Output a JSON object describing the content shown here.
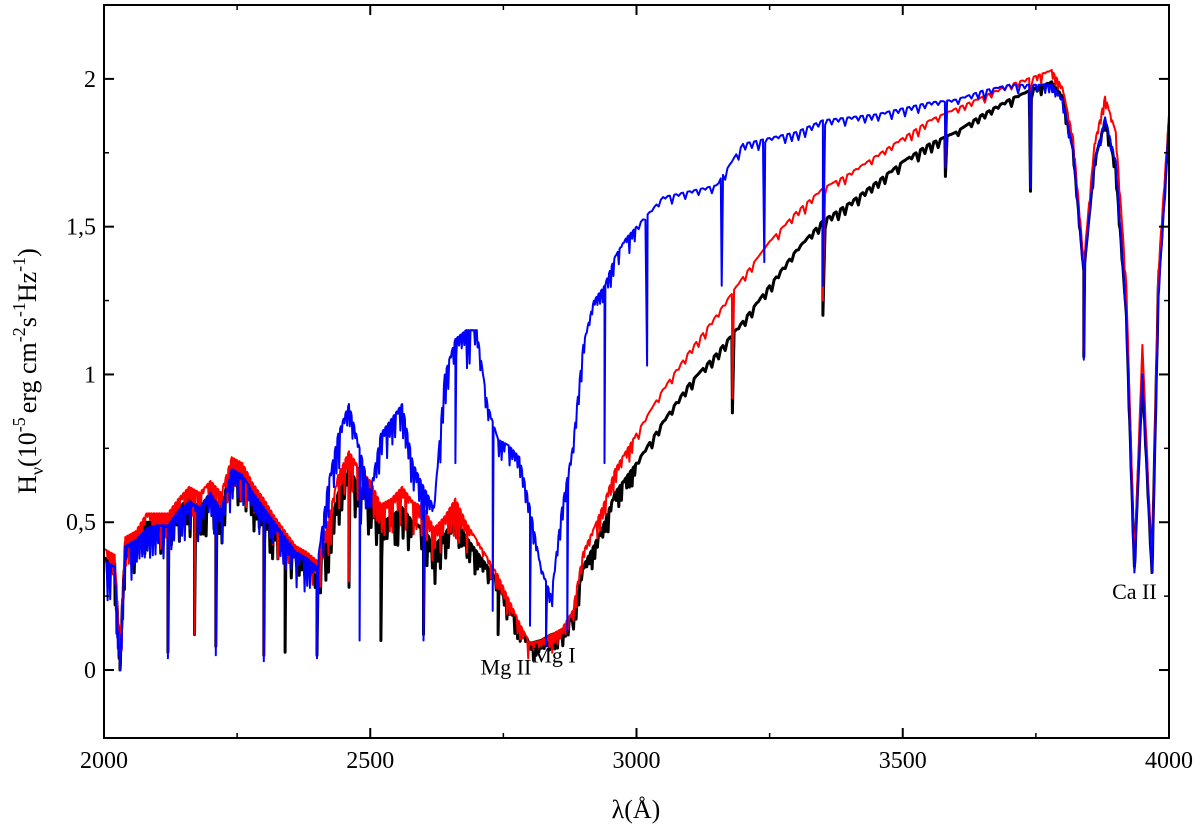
{
  "chart_data": {
    "type": "line",
    "title": "",
    "xlabel": "λ(Å)",
    "ylabel": {
      "main": "H",
      "sub": "ν",
      "unit": "(10",
      "exp": "-5",
      "rest": "erg cm",
      "exp2": "-2",
      "s": "s",
      "exp3": "-1",
      "hz": "Hz",
      "exp4": "-1",
      "close": ")"
    },
    "xlim": [
      2000,
      4000
    ],
    "ylim": [
      -0.23,
      2.25
    ],
    "x_ticks": [
      {
        "value": 2000,
        "label": "2000"
      },
      {
        "value": 2500,
        "label": "2500"
      },
      {
        "value": 3000,
        "label": "3000"
      },
      {
        "value": 3500,
        "label": "3500"
      },
      {
        "value": 4000,
        "label": "4000"
      }
    ],
    "y_ticks": [
      {
        "value": 0,
        "label": "0"
      },
      {
        "value": 0.5,
        "label": "0,5"
      },
      {
        "value": 1,
        "label": "1"
      },
      {
        "value": 1.5,
        "label": "1,5"
      },
      {
        "value": 2,
        "label": "2"
      }
    ],
    "grid": false,
    "series": [
      {
        "color": "#000000",
        "stroke": 3,
        "x": [
          2000,
          2020,
          2030,
          2040,
          2060,
          2080,
          2100,
          2120,
          2140,
          2160,
          2180,
          2200,
          2220,
          2240,
          2260,
          2280,
          2300,
          2320,
          2340,
          2360,
          2380,
          2400,
          2420,
          2440,
          2460,
          2480,
          2500,
          2520,
          2540,
          2560,
          2580,
          2600,
          2620,
          2640,
          2660,
          2680,
          2700,
          2720,
          2740,
          2760,
          2780,
          2800,
          2820,
          2840,
          2860,
          2880,
          2900,
          2920,
          2940,
          2960,
          2980,
          3000,
          3050,
          3100,
          3150,
          3200,
          3250,
          3300,
          3350,
          3400,
          3450,
          3500,
          3550,
          3600,
          3650,
          3700,
          3750,
          3780,
          3800,
          3820,
          3840,
          3860,
          3880,
          3900,
          3920,
          3935,
          3950,
          3968,
          3980,
          4000
        ],
        "y": [
          0.38,
          0.36,
          0.05,
          0.43,
          0.44,
          0.5,
          0.5,
          0.5,
          0.55,
          0.58,
          0.55,
          0.6,
          0.55,
          0.69,
          0.68,
          0.6,
          0.55,
          0.5,
          0.45,
          0.4,
          0.38,
          0.35,
          0.45,
          0.6,
          0.68,
          0.62,
          0.58,
          0.5,
          0.52,
          0.55,
          0.5,
          0.48,
          0.42,
          0.46,
          0.52,
          0.45,
          0.4,
          0.35,
          0.3,
          0.22,
          0.15,
          0.09,
          0.1,
          0.12,
          0.13,
          0.18,
          0.35,
          0.42,
          0.5,
          0.6,
          0.65,
          0.7,
          0.84,
          0.97,
          1.07,
          1.18,
          1.3,
          1.42,
          1.52,
          1.58,
          1.65,
          1.72,
          1.78,
          1.82,
          1.88,
          1.93,
          1.97,
          1.99,
          1.94,
          1.76,
          1.35,
          1.72,
          1.86,
          1.7,
          1.2,
          0.35,
          1.0,
          0.33,
          1.3,
          1.85
        ],
        "absorption": [
          [
            2030,
            0.0
          ],
          [
            2120,
            0.06
          ],
          [
            2170,
            0.12
          ],
          [
            2210,
            0.08
          ],
          [
            2300,
            0.05
          ],
          [
            2340,
            0.06
          ],
          [
            2400,
            0.05
          ],
          [
            2460,
            0.28
          ],
          [
            2520,
            0.1
          ],
          [
            2600,
            0.12
          ],
          [
            2740,
            0.12
          ],
          [
            2880,
            0.16
          ],
          [
            3180,
            0.87
          ],
          [
            3350,
            1.2
          ],
          [
            3580,
            1.67
          ],
          [
            3740,
            1.62
          ],
          [
            3840,
            1.06
          ]
        ]
      },
      {
        "color": "#ff0000",
        "stroke": 2,
        "x": [
          2000,
          2020,
          2030,
          2040,
          2060,
          2080,
          2100,
          2120,
          2140,
          2160,
          2180,
          2200,
          2220,
          2240,
          2260,
          2280,
          2300,
          2320,
          2340,
          2360,
          2380,
          2400,
          2420,
          2440,
          2460,
          2480,
          2500,
          2520,
          2540,
          2560,
          2580,
          2600,
          2620,
          2640,
          2660,
          2680,
          2700,
          2720,
          2740,
          2760,
          2780,
          2800,
          2820,
          2840,
          2860,
          2880,
          2900,
          2920,
          2940,
          2960,
          2980,
          3000,
          3050,
          3100,
          3150,
          3200,
          3250,
          3300,
          3350,
          3400,
          3450,
          3500,
          3550,
          3600,
          3650,
          3700,
          3750,
          3780,
          3800,
          3820,
          3840,
          3860,
          3880,
          3900,
          3920,
          3935,
          3950,
          3968,
          3980,
          4000
        ],
        "y": [
          0.41,
          0.39,
          0.06,
          0.45,
          0.47,
          0.53,
          0.53,
          0.53,
          0.58,
          0.62,
          0.6,
          0.64,
          0.6,
          0.72,
          0.7,
          0.63,
          0.58,
          0.52,
          0.47,
          0.42,
          0.4,
          0.37,
          0.5,
          0.66,
          0.74,
          0.68,
          0.64,
          0.56,
          0.58,
          0.62,
          0.57,
          0.55,
          0.48,
          0.52,
          0.58,
          0.5,
          0.44,
          0.38,
          0.32,
          0.24,
          0.16,
          0.09,
          0.1,
          0.12,
          0.14,
          0.2,
          0.4,
          0.48,
          0.57,
          0.68,
          0.74,
          0.8,
          0.95,
          1.08,
          1.2,
          1.33,
          1.45,
          1.55,
          1.63,
          1.68,
          1.74,
          1.8,
          1.86,
          1.9,
          1.94,
          1.98,
          2.01,
          2.03,
          1.97,
          1.8,
          1.38,
          1.78,
          1.94,
          1.82,
          1.3,
          0.36,
          1.1,
          0.34,
          1.35,
          1.88
        ],
        "absorption": [
          [
            2030,
            0.0
          ],
          [
            2120,
            0.06
          ],
          [
            2170,
            0.12
          ],
          [
            2210,
            0.08
          ],
          [
            2300,
            0.05
          ],
          [
            2400,
            0.05
          ],
          [
            2460,
            0.3
          ],
          [
            2600,
            0.13
          ],
          [
            2880,
            0.18
          ],
          [
            3180,
            0.92
          ],
          [
            3350,
            1.25
          ],
          [
            3580,
            1.7
          ],
          [
            3740,
            1.65
          ],
          [
            3840,
            1.08
          ]
        ]
      },
      {
        "color": "#0000ff",
        "stroke": 2,
        "x": [
          2000,
          2020,
          2030,
          2040,
          2060,
          2080,
          2100,
          2120,
          2140,
          2160,
          2180,
          2200,
          2220,
          2240,
          2260,
          2280,
          2300,
          2320,
          2340,
          2360,
          2380,
          2400,
          2420,
          2440,
          2460,
          2480,
          2500,
          2520,
          2540,
          2560,
          2580,
          2600,
          2620,
          2640,
          2660,
          2680,
          2700,
          2720,
          2740,
          2760,
          2780,
          2800,
          2820,
          2840,
          2860,
          2880,
          2900,
          2920,
          2940,
          2960,
          2980,
          3000,
          3050,
          3100,
          3150,
          3200,
          3250,
          3300,
          3350,
          3400,
          3450,
          3500,
          3550,
          3600,
          3650,
          3700,
          3750,
          3780,
          3800,
          3820,
          3840,
          3860,
          3880,
          3900,
          3920,
          3935,
          3950,
          3968,
          3980,
          4000
        ],
        "y": [
          0.37,
          0.35,
          0.02,
          0.42,
          0.44,
          0.48,
          0.49,
          0.49,
          0.54,
          0.57,
          0.55,
          0.6,
          0.54,
          0.68,
          0.66,
          0.6,
          0.55,
          0.5,
          0.45,
          0.4,
          0.38,
          0.35,
          0.62,
          0.8,
          0.9,
          0.75,
          0.6,
          0.8,
          0.85,
          0.9,
          0.7,
          0.62,
          0.55,
          1.0,
          1.12,
          1.15,
          1.15,
          0.9,
          0.78,
          0.76,
          0.72,
          0.55,
          0.35,
          0.25,
          0.55,
          0.75,
          1.1,
          1.25,
          1.3,
          1.4,
          1.46,
          1.5,
          1.6,
          1.62,
          1.64,
          1.78,
          1.8,
          1.82,
          1.86,
          1.87,
          1.88,
          1.9,
          1.92,
          1.93,
          1.96,
          1.98,
          1.98,
          1.98,
          1.93,
          1.76,
          1.35,
          1.72,
          1.87,
          1.72,
          1.2,
          0.33,
          1.0,
          0.33,
          1.26,
          1.85
        ],
        "absorption": [
          [
            2030,
            0.0
          ],
          [
            2120,
            0.04
          ],
          [
            2210,
            0.05
          ],
          [
            2300,
            0.03
          ],
          [
            2400,
            0.04
          ],
          [
            2480,
            0.1
          ],
          [
            2600,
            0.1
          ],
          [
            2660,
            0.7
          ],
          [
            2730,
            0.2
          ],
          [
            2800,
            0.15
          ],
          [
            2830,
            0.08
          ],
          [
            2870,
            0.13
          ],
          [
            2940,
            0.7
          ],
          [
            3020,
            1.03
          ],
          [
            3160,
            1.3
          ],
          [
            3240,
            1.38
          ],
          [
            3350,
            1.3
          ],
          [
            3580,
            1.7
          ],
          [
            3740,
            1.63
          ],
          [
            3840,
            1.05
          ]
        ]
      }
    ],
    "annotations": [
      {
        "text": "Mg II",
        "x": 2755,
        "y": -0.015
      },
      {
        "text": "Mg I",
        "x": 2845,
        "y": 0.025
      },
      {
        "text": "Ca II",
        "x": 3935,
        "y": 0.24
      }
    ]
  }
}
